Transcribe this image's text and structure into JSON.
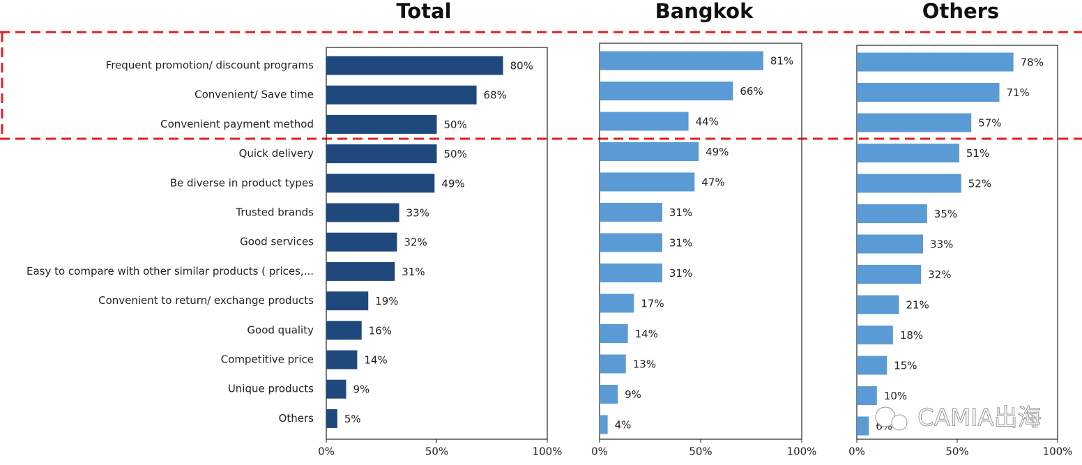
{
  "chart_data": [
    {
      "type": "bar",
      "orientation": "horizontal",
      "title": "Total",
      "color": "#1f497d",
      "categories": [
        "Frequent promotion/ discount programs",
        "Convenient/ Save time",
        "Convenient payment method",
        "Quick delivery",
        "Be diverse in product types",
        "Trusted brands",
        "Good services",
        "Easy to compare with other similar products ( prices,...",
        "Convenient to return/ exchange products",
        "Good quality",
        "Competitive price",
        "Unique products",
        "Others"
      ],
      "values": [
        80,
        68,
        50,
        50,
        49,
        33,
        32,
        31,
        19,
        16,
        14,
        9,
        5
      ],
      "value_labels": [
        "80%",
        "68%",
        "50%",
        "50%",
        "49%",
        "33%",
        "32%",
        "31%",
        "19%",
        "16%",
        "14%",
        "9%",
        "5%"
      ],
      "xlim": [
        0,
        100
      ],
      "xticks": [
        {
          "value": 0,
          "label": "0%"
        },
        {
          "value": 50,
          "label": "50%"
        },
        {
          "value": 100,
          "label": "100%"
        }
      ]
    },
    {
      "type": "bar",
      "orientation": "horizontal",
      "title": "Bangkok",
      "color": "#5b9bd5",
      "values": [
        81,
        66,
        44,
        49,
        47,
        31,
        31,
        31,
        17,
        14,
        13,
        9,
        4
      ],
      "value_labels": [
        "81%",
        "66%",
        "44%",
        "49%",
        "47%",
        "31%",
        "31%",
        "31%",
        "17%",
        "14%",
        "13%",
        "9%",
        "4%"
      ],
      "xlim": [
        0,
        100
      ],
      "xticks": [
        {
          "value": 0,
          "label": "0%"
        },
        {
          "value": 50,
          "label": "50%"
        },
        {
          "value": 100,
          "label": "100%"
        }
      ]
    },
    {
      "type": "bar",
      "orientation": "horizontal",
      "title": "Others",
      "color": "#5b9bd5",
      "values": [
        78,
        71,
        57,
        51,
        52,
        35,
        33,
        32,
        21,
        18,
        15,
        10,
        6
      ],
      "value_labels": [
        "78%",
        "71%",
        "57%",
        "51%",
        "52%",
        "35%",
        "33%",
        "32%",
        "21%",
        "18%",
        "15%",
        "10%",
        "6%"
      ],
      "xlim": [
        0,
        100
      ],
      "xticks": [
        {
          "value": 0,
          "label": "0%"
        },
        {
          "value": 50,
          "label": "50%"
        },
        {
          "value": 100,
          "label": "100%"
        }
      ]
    }
  ],
  "watermark": "CAMIA出海"
}
